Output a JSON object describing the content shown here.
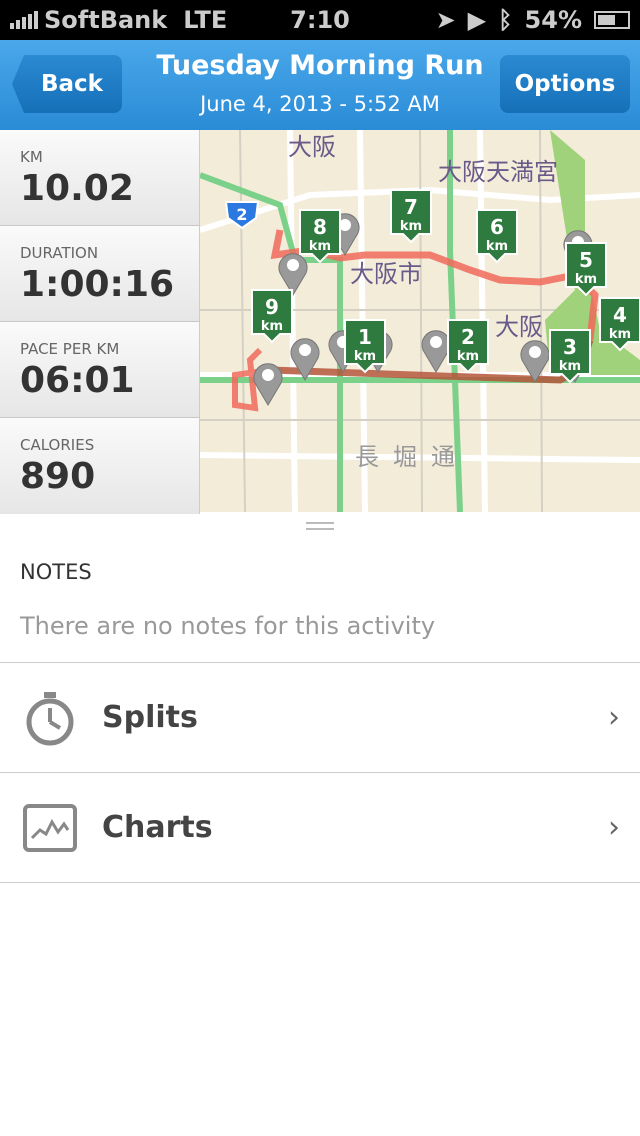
{
  "status": {
    "carrier": "SoftBank",
    "network": "LTE",
    "time": "7:10",
    "battery": "54%",
    "battery_level": 0.54
  },
  "nav": {
    "back": "Back",
    "title": "Tuesday Morning Run",
    "subtitle": "June 4, 2013 - 5:52 AM",
    "options": "Options"
  },
  "stats": [
    {
      "label": "KM",
      "value": "10.02"
    },
    {
      "label": "DURATION",
      "value": "1:00:16"
    },
    {
      "label": "PACE PER KM",
      "value": "06:01"
    },
    {
      "label": "CALORIES",
      "value": "890"
    }
  ],
  "map": {
    "labels": [
      "大阪",
      "大阪天満宮",
      "大阪市",
      "大阪",
      "長堀通"
    ],
    "route_shield": "2",
    "km_unit": "km",
    "markers": [
      "1",
      "2",
      "3",
      "4",
      "5",
      "6",
      "7",
      "8",
      "9"
    ],
    "route_color": "#f06a5a",
    "marker_color": "#2f7a3e"
  },
  "notes": {
    "heading": "NOTES",
    "text": "There are no notes for this activity"
  },
  "rows": [
    {
      "label": "Splits",
      "icon": "stopwatch-icon"
    },
    {
      "label": "Charts",
      "icon": "chart-icon"
    }
  ]
}
